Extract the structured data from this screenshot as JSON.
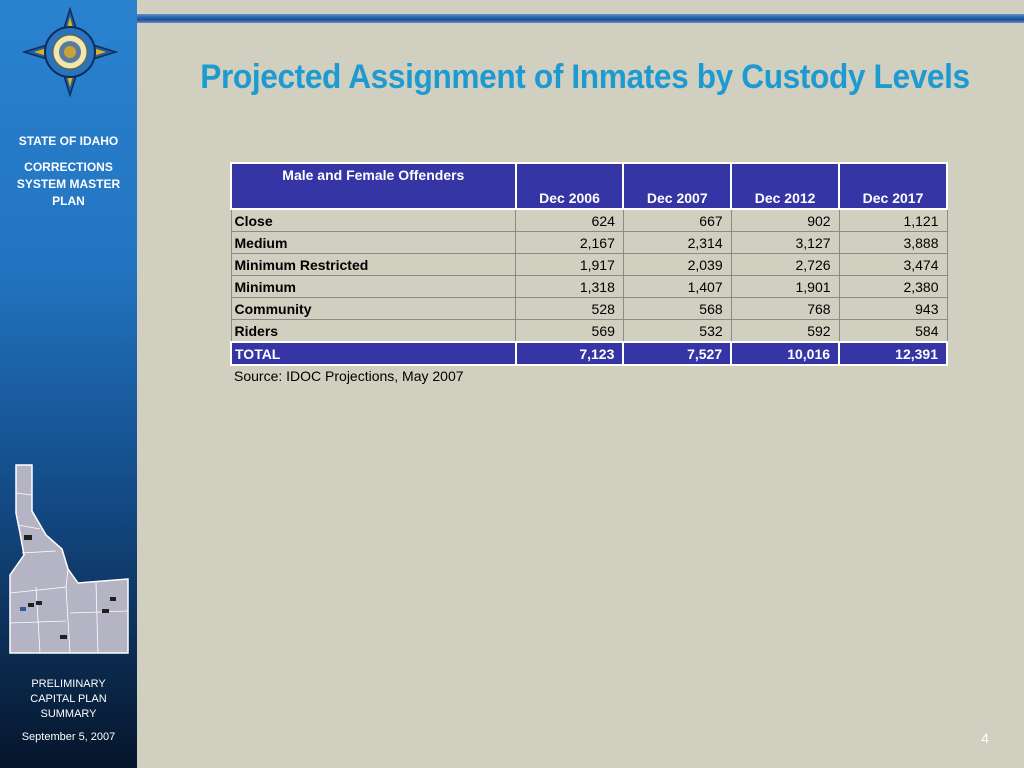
{
  "sidebar": {
    "state": "STATE OF IDAHO",
    "plan_line1": "CORRECTIONS",
    "plan_line2": "SYSTEM MASTER",
    "plan_line3": "PLAN",
    "footer_line1": "PRELIMINARY",
    "footer_line2": "CAPITAL PLAN",
    "footer_line3": "SUMMARY",
    "date": "September 5, 2007"
  },
  "slide": {
    "title": "Projected Assignment of Inmates by Custody Levels",
    "page_number": "4",
    "source": "Source: IDOC Projections, May 2007"
  },
  "colors": {
    "title": "#1d9bd1",
    "header_fill": "#3535a6",
    "background": "#d1cfbf"
  },
  "table": {
    "header_label": "Male and Female Offenders",
    "columns": [
      "Dec 2006",
      "Dec 2007",
      "Dec 2012",
      "Dec 2017"
    ],
    "rows": [
      {
        "label": "Close",
        "values": [
          "624",
          "667",
          "902",
          "1,121"
        ]
      },
      {
        "label": "Medium",
        "values": [
          "2,167",
          "2,314",
          "3,127",
          "3,888"
        ]
      },
      {
        "label": "Minimum Restricted",
        "values": [
          "1,917",
          "2,039",
          "2,726",
          "3,474"
        ]
      },
      {
        "label": "Minimum",
        "values": [
          "1,318",
          "1,407",
          "1,901",
          "2,380"
        ]
      },
      {
        "label": "Community",
        "values": [
          "528",
          "568",
          "768",
          "943"
        ]
      },
      {
        "label": "Riders",
        "values": [
          "569",
          "532",
          "592",
          "584"
        ]
      }
    ],
    "total": {
      "label": "TOTAL",
      "values": [
        "7,123",
        "7,527",
        "10,016",
        "12,391"
      ]
    }
  },
  "icons": {
    "logo": "idoc-seal-icon",
    "map": "idaho-map-icon"
  }
}
